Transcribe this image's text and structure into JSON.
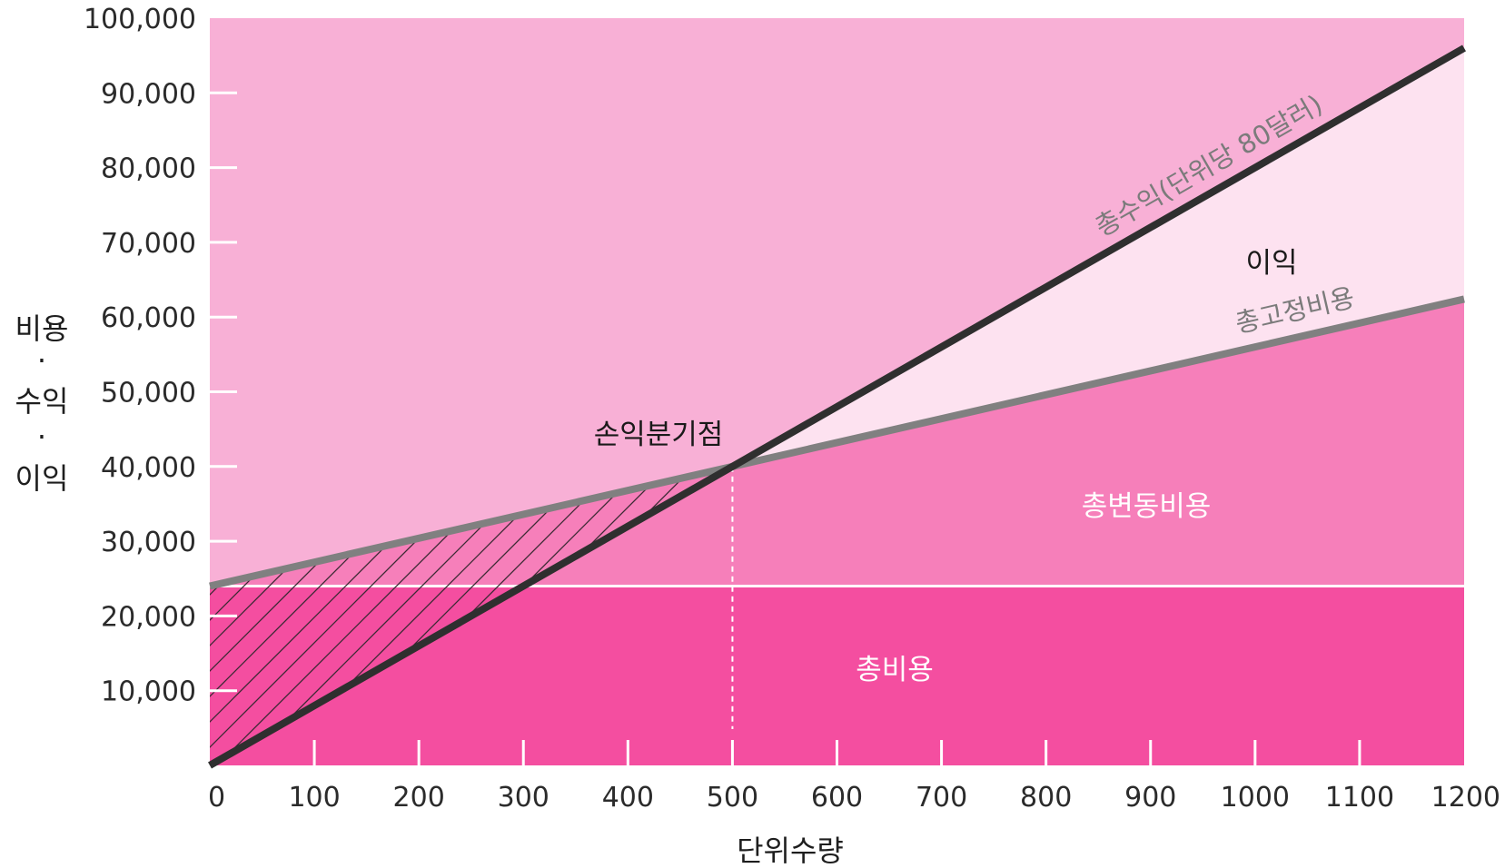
{
  "chart_data": {
    "type": "line",
    "xlabel": "단위수량",
    "ylabel_lines": [
      "비용",
      "·",
      "수익",
      "·",
      "이익"
    ],
    "xlim": [
      0,
      1200
    ],
    "ylim": [
      0,
      100000
    ],
    "x_ticks": [
      0,
      100,
      200,
      300,
      400,
      500,
      600,
      700,
      800,
      900,
      1000,
      1100,
      1200
    ],
    "x_tick_labels": [
      "0",
      "100",
      "200",
      "300",
      "400",
      "500",
      "600",
      "700",
      "800",
      "900",
      "1000",
      "1100",
      "1200"
    ],
    "y_ticks": [
      10000,
      20000,
      30000,
      40000,
      50000,
      60000,
      70000,
      80000,
      90000,
      100000
    ],
    "y_tick_labels": [
      "10,000",
      "20,000",
      "30,000",
      "40,000",
      "50,000",
      "60,000",
      "70,000",
      "80,000",
      "90,000",
      "100,000"
    ],
    "series": [
      {
        "name": "총수익(단위당 80달러)",
        "x": [
          0,
          1200
        ],
        "y": [
          0,
          96000
        ],
        "color": "#2f2f2f"
      },
      {
        "name": "총고정비용",
        "x": [
          0,
          1200
        ],
        "y": [
          24000,
          62400
        ],
        "color": "#808080"
      }
    ],
    "fixed_cost_level": 24000,
    "break_even": {
      "label": "손익분기점",
      "x": 500,
      "y": 40000
    },
    "regions": [
      {
        "label": "총비용",
        "color": "#f44ea0"
      },
      {
        "label": "총변동비용",
        "color": "#f67fba"
      },
      {
        "label": "이익",
        "color": "#fde2f0"
      }
    ],
    "background_color": "#f8b0d6",
    "grid": false
  }
}
